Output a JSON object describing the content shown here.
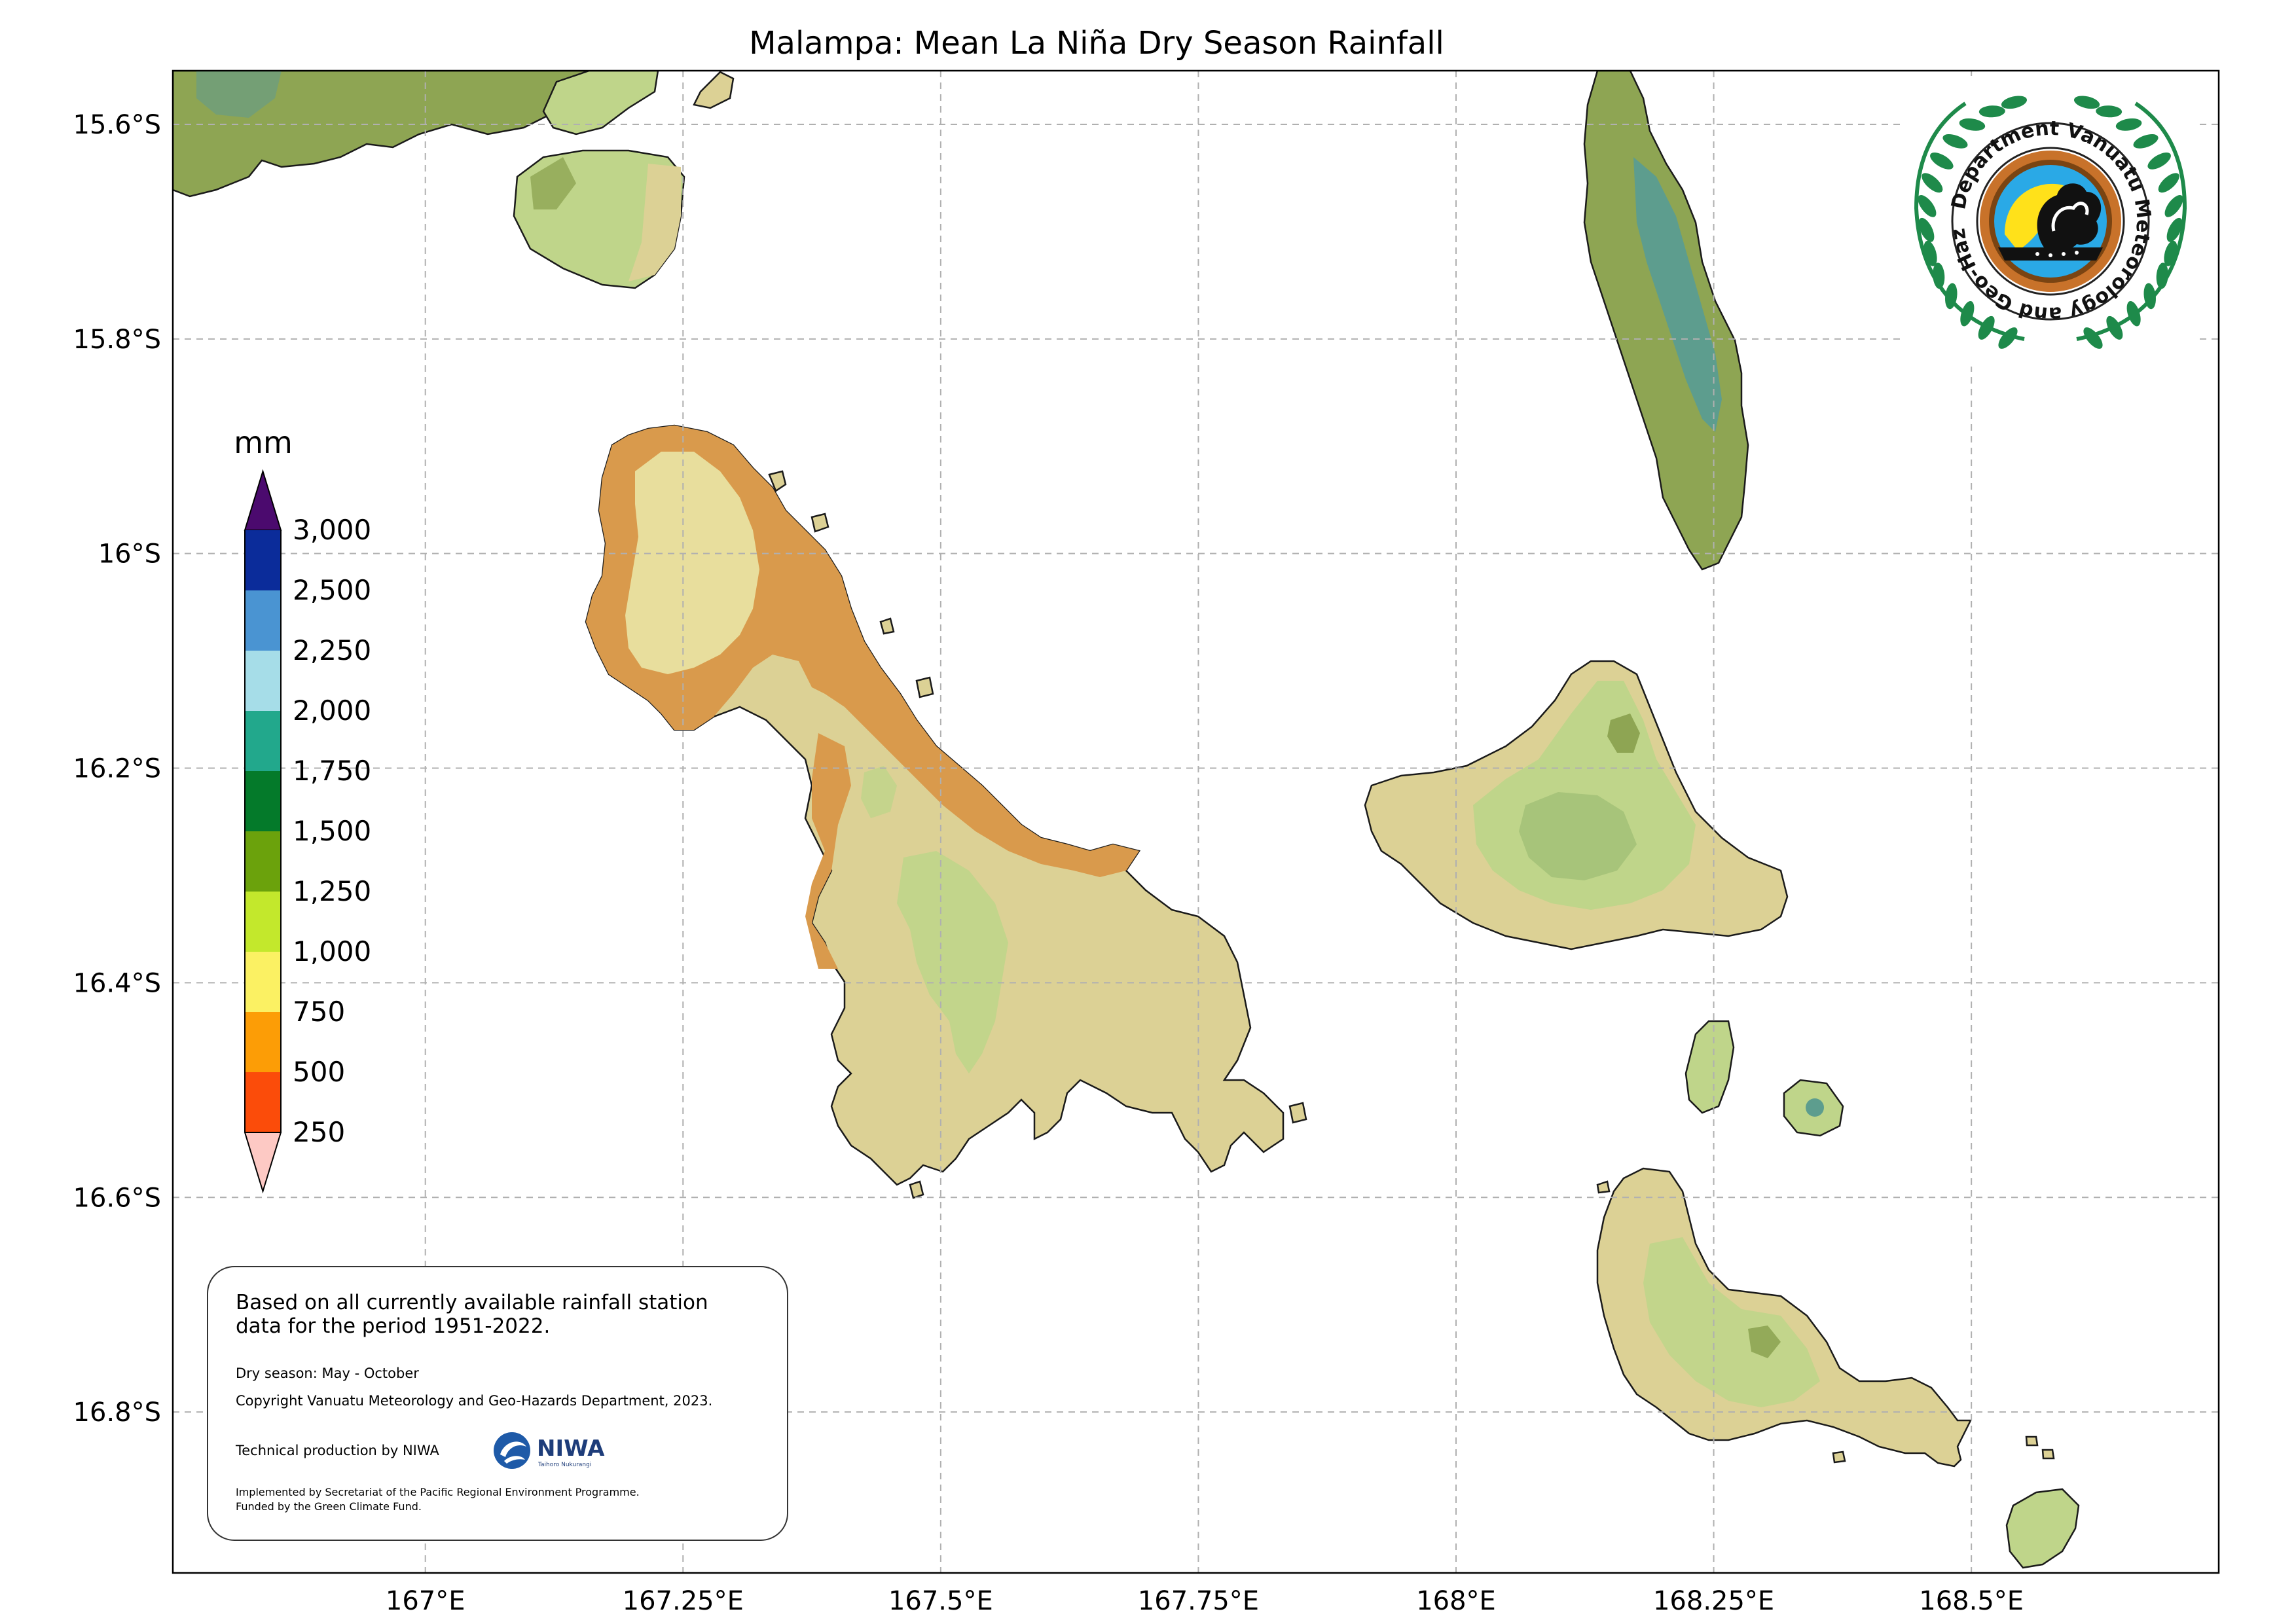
{
  "title": "Malampa: Mean La Niña Dry Season Rainfall",
  "axes": {
    "lat_ticks": [
      "15.6°S",
      "15.8°S",
      "16°S",
      "16.2°S",
      "16.4°S",
      "16.6°S",
      "16.8°S"
    ],
    "lon_ticks": [
      "167°E",
      "167.25°E",
      "167.5°E",
      "167.75°E",
      "168°E",
      "168.25°E",
      "168.5°E"
    ],
    "lat_range": [
      -16.95,
      -15.55
    ],
    "lon_range": [
      166.755,
      168.74
    ],
    "grid": true
  },
  "colorbar": {
    "unit": "mm",
    "labels": [
      "3,000",
      "2,500",
      "2,250",
      "2,000",
      "1,750",
      "1,500",
      "1,250",
      "1,000",
      "750",
      "500",
      "250"
    ],
    "colors": {
      "over": "#4b0a6e",
      "bins_top_to_bottom": [
        "#0b2c9a",
        "#4a94d2",
        "#a6dde8",
        "#22a88c",
        "#047a2a",
        "#6ba20c",
        "#c3e82c",
        "#fbf163",
        "#fc9d06",
        "#fb4c0a"
      ],
      "under": "#fdc9c4"
    }
  },
  "map_colors": {
    "dry_orange": "#d99a4c",
    "pale_khaki": "#dcd195",
    "light_green": "#bfd58a",
    "olive_green": "#8ea553",
    "teal_green": "#6e9e7e",
    "teal": "#5d9d8e",
    "pale_yellow": "#e8de9d"
  },
  "info": {
    "main_text": "Based on all currently available rainfall station data for the period 1951-2022.",
    "season": "Dry season: May - October",
    "copyright": "Copyright Vanuatu Meteorology and Geo-Hazards Department, 2023.",
    "production": "Technical production by NIWA",
    "niwa_logo_text": "NIWA",
    "niwa_logo_sub": "Taihoro Nukurangi",
    "implemented": "Implemented by Secretariat of the Pacific Regional Environment Programme.",
    "funded": "Funded by the Green Climate Fund."
  },
  "logo": {
    "text": "Department Vanuatu Meteorology and Geo-Hazards",
    "icon": "vmgd-emblem-icon"
  }
}
